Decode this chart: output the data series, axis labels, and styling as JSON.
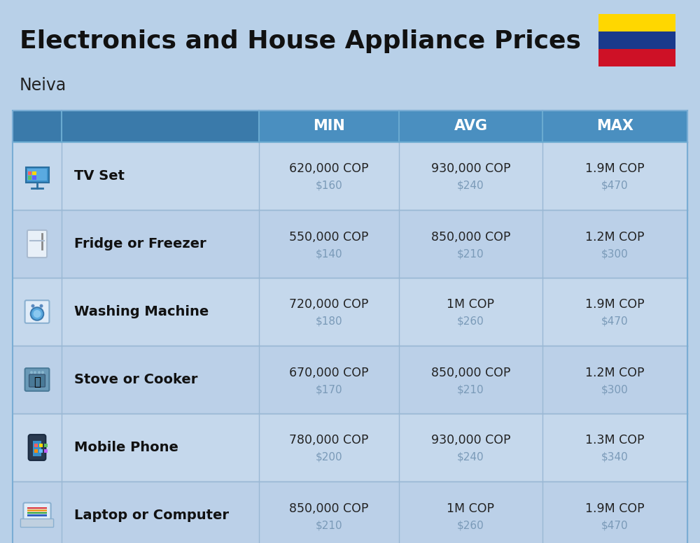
{
  "title_line1": "Electronics and House Appliance Prices",
  "subtitle": "Neiva",
  "bg_color": "#b8d0e8",
  "header_color": "#4a8fc0",
  "header_dark_color": "#3a7aaa",
  "row_colors": [
    "#c5d8ec",
    "#bbd0e8"
  ],
  "divider_color": "#9ab8d4",
  "columns": [
    "MIN",
    "AVG",
    "MAX"
  ],
  "items": [
    {
      "name": "TV Set",
      "min_cop": "620,000 COP",
      "min_usd": "$160",
      "avg_cop": "930,000 COP",
      "avg_usd": "$240",
      "max_cop": "1.9M COP",
      "max_usd": "$470"
    },
    {
      "name": "Fridge or Freezer",
      "min_cop": "550,000 COP",
      "min_usd": "$140",
      "avg_cop": "850,000 COP",
      "avg_usd": "$210",
      "max_cop": "1.2M COP",
      "max_usd": "$300"
    },
    {
      "name": "Washing Machine",
      "min_cop": "720,000 COP",
      "min_usd": "$180",
      "avg_cop": "1M COP",
      "avg_usd": "$260",
      "max_cop": "1.9M COP",
      "max_usd": "$470"
    },
    {
      "name": "Stove or Cooker",
      "min_cop": "670,000 COP",
      "min_usd": "$170",
      "avg_cop": "850,000 COP",
      "avg_usd": "$210",
      "max_cop": "1.2M COP",
      "max_usd": "$300"
    },
    {
      "name": "Mobile Phone",
      "min_cop": "780,000 COP",
      "min_usd": "$200",
      "avg_cop": "930,000 COP",
      "avg_usd": "$240",
      "max_cop": "1.3M COP",
      "max_usd": "$340"
    },
    {
      "name": "Laptop or Computer",
      "min_cop": "850,000 COP",
      "min_usd": "$210",
      "avg_cop": "1M COP",
      "avg_usd": "$260",
      "max_cop": "1.9M COP",
      "max_usd": "$470"
    }
  ],
  "flag_colors": [
    "#FFD700",
    "#1a3a8c",
    "#CE1126"
  ],
  "price_text_color": "#222222",
  "usd_text_color": "#7a9ab8",
  "name_text_color": "#111111",
  "header_text_color": "#ffffff",
  "title_text_color": "#111111",
  "subtitle_text_color": "#222222"
}
